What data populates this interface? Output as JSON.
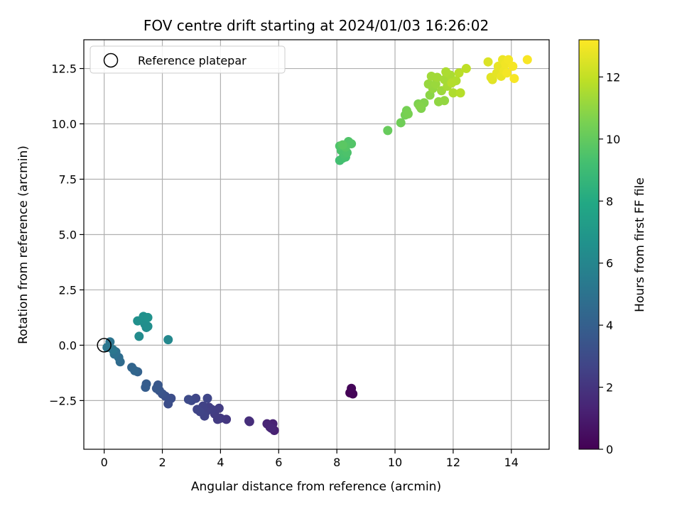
{
  "chart_data": {
    "type": "scatter",
    "title": "FOV centre drift starting at 2024/01/03 16:26:02",
    "xlabel": "Angular distance from reference (arcmin)",
    "ylabel": "Rotation from reference (arcmin)",
    "xlim": [
      -0.7,
      15.3
    ],
    "ylim": [
      -4.7,
      13.8
    ],
    "xticks": [
      0,
      2,
      4,
      6,
      8,
      10,
      12,
      14
    ],
    "xtick_labels": [
      "0",
      "2",
      "4",
      "6",
      "8",
      "10",
      "12",
      "14"
    ],
    "yticks": [
      -2.5,
      0.0,
      2.5,
      5.0,
      7.5,
      10.0,
      12.5
    ],
    "ytick_labels": [
      "−2.5",
      "0.0",
      "2.5",
      "5.0",
      "7.5",
      "10.0",
      "12.5"
    ],
    "grid": true,
    "legend": {
      "placement": "top-left",
      "entries": [
        {
          "label": "Reference platepar",
          "marker": "open-circle"
        }
      ]
    },
    "reference_point": {
      "x": 0,
      "y": 0
    },
    "colorbar": {
      "label": "Hours from first FF file",
      "colormap": "viridis",
      "range": [
        0,
        13.2
      ],
      "ticks": [
        0,
        2,
        4,
        6,
        8,
        10,
        12
      ],
      "tick_labels": [
        "0",
        "2",
        "4",
        "6",
        "8",
        "10",
        "12"
      ]
    },
    "series": [
      {
        "points": [
          {
            "x": 8.45,
            "y": -2.15,
            "t": 0.05
          },
          {
            "x": 8.55,
            "y": -2.2,
            "t": 0.1
          },
          {
            "x": 8.5,
            "y": -1.95,
            "t": 0.15
          },
          {
            "x": 5.85,
            "y": -3.85,
            "t": 1.2
          },
          {
            "x": 5.8,
            "y": -3.55,
            "t": 1.25
          },
          {
            "x": 5.7,
            "y": -3.7,
            "t": 1.3
          },
          {
            "x": 5.6,
            "y": -3.55,
            "t": 1.35
          },
          {
            "x": 5.75,
            "y": -3.75,
            "t": 1.4
          },
          {
            "x": 5.0,
            "y": -3.45,
            "t": 1.7
          },
          {
            "x": 4.98,
            "y": -3.42,
            "t": 1.75
          },
          {
            "x": 4.2,
            "y": -3.35,
            "t": 2.1
          },
          {
            "x": 4.0,
            "y": -3.3,
            "t": 2.2
          },
          {
            "x": 3.9,
            "y": -3.35,
            "t": 2.25
          },
          {
            "x": 3.8,
            "y": -3.1,
            "t": 2.3
          },
          {
            "x": 3.95,
            "y": -2.85,
            "t": 2.35
          },
          {
            "x": 3.7,
            "y": -2.9,
            "t": 2.4
          },
          {
            "x": 3.6,
            "y": -2.8,
            "t": 2.45
          },
          {
            "x": 3.5,
            "y": -3.0,
            "t": 2.5
          },
          {
            "x": 3.4,
            "y": -2.75,
            "t": 2.55
          },
          {
            "x": 3.45,
            "y": -3.2,
            "t": 2.6
          },
          {
            "x": 3.3,
            "y": -3.0,
            "t": 2.65
          },
          {
            "x": 3.2,
            "y": -2.9,
            "t": 2.7
          },
          {
            "x": 3.55,
            "y": -2.4,
            "t": 2.75
          },
          {
            "x": 3.15,
            "y": -2.4,
            "t": 2.8
          },
          {
            "x": 3.0,
            "y": -2.5,
            "t": 2.9
          },
          {
            "x": 2.9,
            "y": -2.45,
            "t": 3.0
          },
          {
            "x": 2.3,
            "y": -2.4,
            "t": 3.1
          },
          {
            "x": 2.2,
            "y": -2.65,
            "t": 3.15
          },
          {
            "x": 2.25,
            "y": -2.45,
            "t": 3.2
          },
          {
            "x": 2.1,
            "y": -2.3,
            "t": 3.25
          },
          {
            "x": 2.0,
            "y": -2.2,
            "t": 3.35
          },
          {
            "x": 1.9,
            "y": -2.05,
            "t": 3.45
          },
          {
            "x": 1.85,
            "y": -1.8,
            "t": 3.55
          },
          {
            "x": 1.8,
            "y": -1.95,
            "t": 3.6
          },
          {
            "x": 1.45,
            "y": -1.75,
            "t": 3.8
          },
          {
            "x": 1.42,
            "y": -1.9,
            "t": 3.85
          },
          {
            "x": 1.15,
            "y": -1.2,
            "t": 4.1
          },
          {
            "x": 0.95,
            "y": -1.0,
            "t": 4.3
          },
          {
            "x": 1.05,
            "y": -1.15,
            "t": 4.35
          },
          {
            "x": 0.55,
            "y": -0.75,
            "t": 4.6
          },
          {
            "x": 0.5,
            "y": -0.55,
            "t": 4.7
          },
          {
            "x": 0.4,
            "y": -0.3,
            "t": 4.85
          },
          {
            "x": 0.35,
            "y": -0.4,
            "t": 4.9
          },
          {
            "x": 0.2,
            "y": 0.15,
            "t": 5.05
          },
          {
            "x": 0.1,
            "y": -0.1,
            "t": 5.15
          },
          {
            "x": 0.3,
            "y": -0.2,
            "t": 5.2
          },
          {
            "x": 2.2,
            "y": 0.25,
            "t": 6.15
          },
          {
            "x": 1.2,
            "y": 0.4,
            "t": 6.3
          },
          {
            "x": 1.45,
            "y": 0.8,
            "t": 6.35
          },
          {
            "x": 1.4,
            "y": 0.95,
            "t": 6.4
          },
          {
            "x": 1.5,
            "y": 0.85,
            "t": 6.45
          },
          {
            "x": 1.3,
            "y": 1.15,
            "t": 6.5
          },
          {
            "x": 1.15,
            "y": 1.1,
            "t": 6.55
          },
          {
            "x": 1.35,
            "y": 1.3,
            "t": 6.6
          },
          {
            "x": 1.5,
            "y": 1.25,
            "t": 6.65
          },
          {
            "x": 8.1,
            "y": 8.35,
            "t": 9.2
          },
          {
            "x": 8.2,
            "y": 8.45,
            "t": 9.25
          },
          {
            "x": 8.3,
            "y": 8.5,
            "t": 9.3
          },
          {
            "x": 8.25,
            "y": 8.65,
            "t": 9.35
          },
          {
            "x": 8.15,
            "y": 8.8,
            "t": 9.4
          },
          {
            "x": 8.35,
            "y": 8.7,
            "t": 9.45
          },
          {
            "x": 8.1,
            "y": 9.0,
            "t": 9.5
          },
          {
            "x": 8.4,
            "y": 9.2,
            "t": 9.55
          },
          {
            "x": 8.5,
            "y": 9.1,
            "t": 9.6
          },
          {
            "x": 8.3,
            "y": 8.95,
            "t": 9.65
          },
          {
            "x": 8.2,
            "y": 9.05,
            "t": 9.8
          },
          {
            "x": 9.75,
            "y": 9.7,
            "t": 10.1
          },
          {
            "x": 10.2,
            "y": 10.05,
            "t": 10.3
          },
          {
            "x": 10.35,
            "y": 10.4,
            "t": 10.4
          },
          {
            "x": 10.4,
            "y": 10.6,
            "t": 10.45
          },
          {
            "x": 10.45,
            "y": 10.45,
            "t": 10.5
          },
          {
            "x": 10.8,
            "y": 10.9,
            "t": 10.6
          },
          {
            "x": 10.9,
            "y": 10.7,
            "t": 10.65
          },
          {
            "x": 11.0,
            "y": 10.95,
            "t": 10.7
          },
          {
            "x": 10.85,
            "y": 10.8,
            "t": 10.75
          },
          {
            "x": 11.2,
            "y": 11.3,
            "t": 10.9
          },
          {
            "x": 11.5,
            "y": 11.0,
            "t": 11.0
          },
          {
            "x": 11.7,
            "y": 11.05,
            "t": 11.05
          },
          {
            "x": 11.3,
            "y": 11.6,
            "t": 11.1
          },
          {
            "x": 11.15,
            "y": 11.8,
            "t": 11.15
          },
          {
            "x": 11.4,
            "y": 11.8,
            "t": 11.2
          },
          {
            "x": 11.6,
            "y": 11.5,
            "t": 11.25
          },
          {
            "x": 11.25,
            "y": 12.15,
            "t": 11.3
          },
          {
            "x": 11.45,
            "y": 12.1,
            "t": 11.35
          },
          {
            "x": 11.7,
            "y": 12.0,
            "t": 11.4
          },
          {
            "x": 11.8,
            "y": 11.7,
            "t": 11.45
          },
          {
            "x": 11.9,
            "y": 12.2,
            "t": 11.5
          },
          {
            "x": 11.75,
            "y": 12.35,
            "t": 11.55
          },
          {
            "x": 12.0,
            "y": 11.4,
            "t": 11.6
          },
          {
            "x": 12.1,
            "y": 11.95,
            "t": 11.65
          },
          {
            "x": 11.95,
            "y": 11.85,
            "t": 11.7
          },
          {
            "x": 12.25,
            "y": 11.4,
            "t": 11.75
          },
          {
            "x": 12.2,
            "y": 12.3,
            "t": 11.8
          },
          {
            "x": 12.45,
            "y": 12.5,
            "t": 11.9
          },
          {
            "x": 13.2,
            "y": 12.8,
            "t": 12.5
          },
          {
            "x": 13.35,
            "y": 12.0,
            "t": 12.6
          },
          {
            "x": 13.3,
            "y": 12.1,
            "t": 12.65
          },
          {
            "x": 13.5,
            "y": 12.3,
            "t": 12.7
          },
          {
            "x": 13.55,
            "y": 12.6,
            "t": 12.75
          },
          {
            "x": 13.65,
            "y": 12.15,
            "t": 12.8
          },
          {
            "x": 13.7,
            "y": 12.9,
            "t": 12.85
          },
          {
            "x": 13.75,
            "y": 12.4,
            "t": 12.9
          },
          {
            "x": 13.8,
            "y": 12.7,
            "t": 12.95
          },
          {
            "x": 13.9,
            "y": 12.9,
            "t": 13.0
          },
          {
            "x": 13.85,
            "y": 12.3,
            "t": 13.02
          },
          {
            "x": 14.05,
            "y": 12.6,
            "t": 13.05
          },
          {
            "x": 14.1,
            "y": 12.05,
            "t": 13.08
          },
          {
            "x": 14.55,
            "y": 12.9,
            "t": 13.1
          }
        ]
      }
    ]
  }
}
